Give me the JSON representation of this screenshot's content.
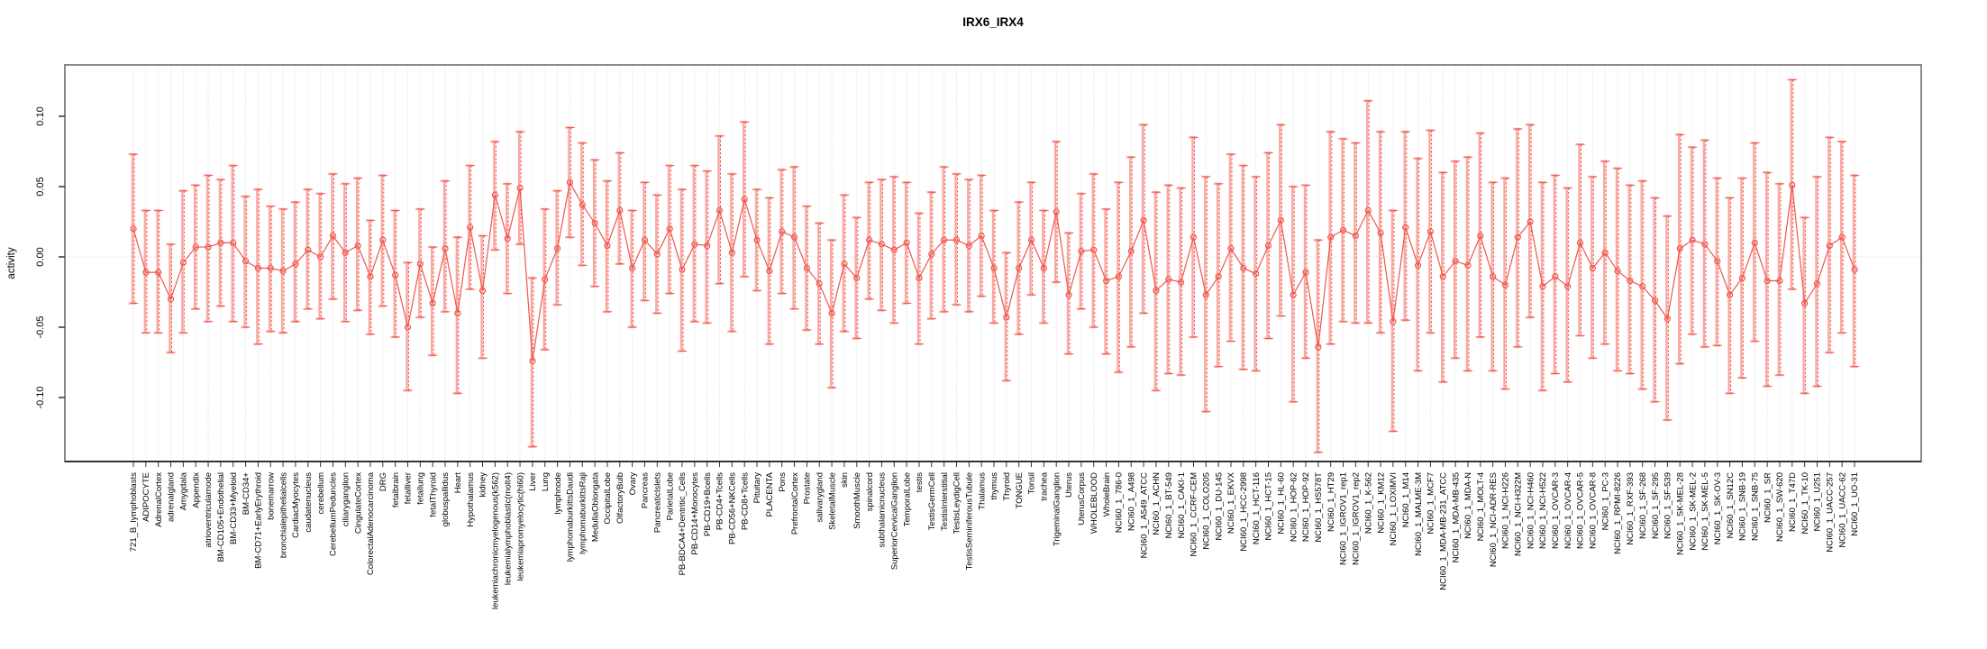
{
  "figure": {
    "title": "IRX6_IRX4",
    "ylabel": "activity"
  },
  "axes": {
    "y_tick_labels": [
      "0.10",
      "0.05",
      "0.00",
      "-0.05",
      "-0.10"
    ],
    "y_tick_values": [
      0.1,
      0.05,
      0.0,
      -0.05,
      -0.1
    ]
  },
  "style": {
    "point_color": "#ef574e",
    "light_bar_color": "#f9a8a2",
    "grid_color": "#d8d8d8",
    "box_color": "#8a8a8a",
    "axis_color": "#333333",
    "text_color": "#000000"
  },
  "chart_data": {
    "type": "line",
    "title": "IRX6_IRX4",
    "xlabel": "",
    "ylabel": "activity",
    "ylim": [
      -0.1455,
      0.1365
    ],
    "y_ticks": [
      0.1,
      0.05,
      0.0,
      -0.05,
      -0.1
    ],
    "grid": "dotted vertical gridline at every category; dotted horizontal line at y=0",
    "legend": "none",
    "marker": "open-circle with error bars, connected by line",
    "categories": [
      "721_B_lymphoblasts",
      "ADIPOCYTE",
      "AdrenalCortex",
      "adrenalgland",
      "Amygdala",
      "Appendix",
      "atrioventricularnode",
      "BM-CD105+Endothelial",
      "BM-CD33+Myeloid",
      "BM-CD34+",
      "BM-CD71+EarlyErythroid",
      "bonemarrow",
      "bronchialepithelialcells",
      "CardiacMyocytes",
      "caudatenucleus",
      "cerebellum",
      "CerebellumPeduncles",
      "ciliaryganglion",
      "CingulateCortex",
      "ColorectalAdenocarcinoma",
      "DRG",
      "fetalbrain",
      "fetalliver",
      "fetallung",
      "fetalThyroid",
      "globuspallidus",
      "Heart",
      "Hypothalamus",
      "kidney",
      "leukemiachronicmyelogenous(k562)",
      "leukemialymphoblastic(molt4)",
      "leukemiapromyelocytic(hl60)",
      "Liver",
      "Lung",
      "lymphnode",
      "lymphomaburkittsDaudi",
      "lymphomaburkittsRaji",
      "MedullaOblongata",
      "OccipitalLobe",
      "OlfactoryBulb",
      "Ovary",
      "Pancreas",
      "PancreaticIslets",
      "ParietalLobe",
      "PB-BDCA4+Dentritic_Cells",
      "PB-CD14+Monocytes",
      "PB-CD19+Bcells",
      "PB-CD4+Tcells",
      "PB-CD56+NKCells",
      "PB-CD8+Tcells",
      "Pituitary",
      "PLACENTA",
      "Pons",
      "PrefrontalCortex",
      "Prostate",
      "salivarygland",
      "SkeletalMuscle",
      "skin",
      "SmoothMuscle",
      "spinalcord",
      "subthalamicnucleus",
      "SuperiorCervicalGanglion",
      "TemporalLobe",
      "testis",
      "TestisGermCell",
      "TestisInterstitial",
      "TestisLeydigCell",
      "TestisSeminiferousTubule",
      "Thalamus",
      "thymus",
      "Thyroid",
      "TONGUE",
      "Tonsil",
      "trachea",
      "TrigeminalGanglion",
      "Uterus",
      "UterusCorpus",
      "WHOLEBLOOD",
      "WholeBrain",
      "NCI60_1_786-0",
      "NCI60_1_A498",
      "NCI60_1_A549_ATCC",
      "NCI60_1_ACHN",
      "NCI60_1_BT-549",
      "NCI60_1_CAKI-1",
      "NCI60_1_CCRF-CEM",
      "NCI60_1_COLO205",
      "NCI60_1_DU-145",
      "NCI60_1_EKVX",
      "NCI60_1_HCC-2998",
      "NCI60_1_HCT-116",
      "NCI60_1_HCT-15",
      "NCI60_1_HL-60",
      "NCI60_1_HOP-62",
      "NCI60_1_HOP-92",
      "NCI60_1_HS578T",
      "NCI60_1_HT29",
      "NCI60_1_IGROV1_rep1",
      "NCI60_1_IGROV1_rep2",
      "NCI60_1_K-562",
      "NCI60_1_KM12",
      "NCI60_1_LOXIMVI",
      "NCI60_1_M14",
      "NCI60_1_MALME-3M",
      "NCI60_1_MCF7",
      "NCI60_1_MDA-MB-231_ATCC",
      "NCI60_1_MDA-MB-435",
      "NCI60_1_MDA-N",
      "NCI60_1_MOLT-4",
      "NCI60_1_NCI-ADR-RES",
      "NCI60_1_NCI-H226",
      "NCI60_1_NCI-H322M",
      "NCI60_1_NCI-H460",
      "NCI60_1_NCI-H522",
      "NCI60_1_OVCAR-3",
      "NCI60_1_OVCAR-4",
      "NCI60_1_OVCAR-5",
      "NCI60_1_OVCAR-8",
      "NCI60_1_PC-3",
      "NCI60_1_RPMI-8226",
      "NCI60_1_RXF-393",
      "NCI60_1_SF-268",
      "NCI60_1_SF-295",
      "NCI60_1_SF-539",
      "NCI60_1_SK-MEL-28",
      "NCI60_1_SK-MEL-2",
      "NCI60_1_SK-MEL-5",
      "NCI60_1_SK-OV-3",
      "NCI60_1_SN12C",
      "NCI60_1_SNB-19",
      "NCI60_1_SNB-75",
      "NCI60_1_SR",
      "NCI60_1_SW-620",
      "NCI60_1_T47D",
      "NCI60_1_TK-10",
      "NCI60_1_U251",
      "NCI60_1_UACC-257",
      "NCI60_1_UACC-62",
      "NCI60_1_UO-31"
    ],
    "series": [
      {
        "name": "activity",
        "values": [
          0.02,
          -0.011,
          -0.011,
          -0.03,
          -0.004,
          0.007,
          0.007,
          0.01,
          0.01,
          -0.003,
          -0.008,
          -0.008,
          -0.01,
          -0.005,
          0.005,
          0.0,
          0.015,
          0.003,
          0.008,
          -0.014,
          0.012,
          -0.013,
          -0.05,
          -0.005,
          -0.033,
          0.006,
          -0.04,
          0.021,
          -0.024,
          0.044,
          0.013,
          0.049,
          -0.074,
          -0.016,
          0.006,
          0.053,
          0.037,
          0.024,
          0.008,
          0.033,
          -0.008,
          0.012,
          0.002,
          0.02,
          -0.009,
          0.009,
          0.008,
          0.033,
          0.003,
          0.041,
          0.012,
          -0.01,
          0.018,
          0.014,
          -0.008,
          -0.019,
          -0.04,
          -0.005,
          -0.015,
          0.012,
          0.009,
          0.005,
          0.01,
          -0.015,
          0.002,
          0.012,
          0.012,
          0.008,
          0.015,
          -0.008,
          -0.043,
          -0.008,
          0.012,
          -0.008,
          0.032,
          -0.027,
          0.004,
          0.005,
          -0.017,
          -0.014,
          0.004,
          0.026,
          -0.024,
          -0.016,
          -0.018,
          0.014,
          -0.027,
          -0.014,
          0.006,
          -0.008,
          -0.012,
          0.008,
          0.026,
          -0.027,
          -0.011,
          -0.064,
          0.014,
          0.019,
          0.015,
          0.033,
          0.017,
          -0.046,
          0.021,
          -0.006,
          0.018,
          -0.014,
          -0.003,
          -0.006,
          0.015,
          -0.014,
          -0.02,
          0.014,
          0.025,
          -0.021,
          -0.014,
          -0.021,
          0.01,
          -0.008,
          0.003,
          -0.01,
          -0.017,
          -0.021,
          -0.031,
          -0.044,
          0.006,
          0.012,
          0.009,
          -0.003,
          -0.027,
          -0.015,
          0.01,
          -0.017,
          -0.017,
          0.051,
          -0.033,
          -0.019,
          0.008,
          0.014,
          -0.009
        ],
        "error_low": [
          -0.033,
          -0.054,
          -0.054,
          -0.068,
          -0.054,
          -0.037,
          -0.046,
          -0.035,
          -0.046,
          -0.05,
          -0.062,
          -0.053,
          -0.054,
          -0.046,
          -0.037,
          -0.044,
          -0.03,
          -0.046,
          -0.038,
          -0.055,
          -0.035,
          -0.057,
          -0.095,
          -0.043,
          -0.07,
          -0.039,
          -0.097,
          -0.023,
          -0.072,
          0.005,
          -0.026,
          0.009,
          -0.135,
          -0.066,
          -0.034,
          0.014,
          -0.006,
          -0.021,
          -0.039,
          -0.005,
          -0.05,
          -0.031,
          -0.04,
          -0.026,
          -0.067,
          -0.046,
          -0.047,
          -0.019,
          -0.053,
          -0.014,
          -0.024,
          -0.062,
          -0.026,
          -0.037,
          -0.052,
          -0.062,
          -0.093,
          -0.053,
          -0.058,
          -0.03,
          -0.038,
          -0.047,
          -0.033,
          -0.062,
          -0.044,
          -0.039,
          -0.034,
          -0.039,
          -0.028,
          -0.047,
          -0.088,
          -0.055,
          -0.027,
          -0.047,
          -0.018,
          -0.069,
          -0.037,
          -0.05,
          -0.069,
          -0.082,
          -0.064,
          -0.04,
          -0.095,
          -0.083,
          -0.084,
          -0.057,
          -0.11,
          -0.078,
          -0.06,
          -0.08,
          -0.081,
          -0.058,
          -0.042,
          -0.103,
          -0.072,
          -0.139,
          -0.062,
          -0.046,
          -0.047,
          -0.047,
          -0.054,
          -0.124,
          -0.045,
          -0.081,
          -0.054,
          -0.089,
          -0.072,
          -0.081,
          -0.057,
          -0.081,
          -0.094,
          -0.064,
          -0.043,
          -0.095,
          -0.083,
          -0.089,
          -0.056,
          -0.072,
          -0.062,
          -0.081,
          -0.083,
          -0.094,
          -0.103,
          -0.116,
          -0.076,
          -0.055,
          -0.064,
          -0.063,
          -0.097,
          -0.086,
          -0.06,
          -0.092,
          -0.084,
          -0.023,
          -0.097,
          -0.092,
          -0.068,
          -0.054,
          -0.078
        ],
        "error_high": [
          0.073,
          0.033,
          0.033,
          0.009,
          0.047,
          0.051,
          0.058,
          0.055,
          0.065,
          0.043,
          0.048,
          0.036,
          0.034,
          0.039,
          0.048,
          0.045,
          0.059,
          0.052,
          0.056,
          0.026,
          0.058,
          0.033,
          -0.004,
          0.034,
          0.007,
          0.054,
          0.014,
          0.065,
          0.015,
          0.082,
          0.052,
          0.089,
          -0.015,
          0.034,
          0.047,
          0.092,
          0.081,
          0.069,
          0.054,
          0.074,
          0.033,
          0.053,
          0.044,
          0.065,
          0.048,
          0.065,
          0.061,
          0.086,
          0.059,
          0.096,
          0.048,
          0.042,
          0.062,
          0.064,
          0.036,
          0.024,
          0.012,
          0.044,
          0.028,
          0.053,
          0.055,
          0.057,
          0.053,
          0.031,
          0.046,
          0.064,
          0.059,
          0.055,
          0.058,
          0.033,
          0.003,
          0.039,
          0.053,
          0.033,
          0.082,
          0.017,
          0.045,
          0.059,
          0.034,
          0.053,
          0.071,
          0.094,
          0.046,
          0.051,
          0.049,
          0.085,
          0.057,
          0.052,
          0.073,
          0.065,
          0.057,
          0.074,
          0.094,
          0.05,
          0.051,
          0.012,
          0.089,
          0.084,
          0.081,
          0.111,
          0.089,
          0.033,
          0.089,
          0.07,
          0.09,
          0.06,
          0.068,
          0.071,
          0.088,
          0.053,
          0.056,
          0.091,
          0.094,
          0.053,
          0.058,
          0.049,
          0.08,
          0.057,
          0.068,
          0.063,
          0.051,
          0.054,
          0.042,
          0.029,
          0.087,
          0.078,
          0.083,
          0.056,
          0.042,
          0.056,
          0.081,
          0.06,
          0.052,
          0.126,
          0.028,
          0.057,
          0.085,
          0.082,
          0.058
        ]
      }
    ]
  }
}
